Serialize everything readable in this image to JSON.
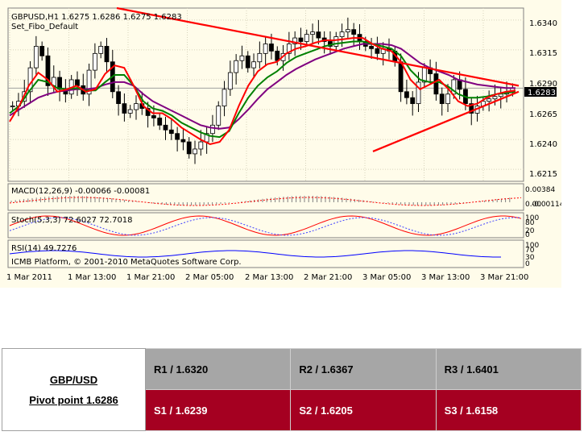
{
  "header": {
    "symbol_line": "GBPUSD,H1  1.6275 1.6286 1.6275 1.6283",
    "indicator_line": "Set_Fibo_Default"
  },
  "price_axis": {
    "ticks": [
      "1.6340",
      "1.6315",
      "1.6290",
      "1.6265",
      "1.6240",
      "1.6215"
    ],
    "current_price": "1.6283"
  },
  "time_axis": {
    "ticks": [
      "1 Mar 2011",
      "1 Mar 13:00",
      "1 Mar 21:00",
      "2 Mar 05:00",
      "2 Mar 13:00",
      "2 Mar 21:00",
      "3 Mar 05:00",
      "3 Mar 13:00",
      "3 Mar 21:00"
    ]
  },
  "panels": {
    "macd": {
      "label": "MACD(12,26,9) -0.00066 -0.00081",
      "ticks": [
        "0.00384",
        "0.00",
        "-0.00114"
      ]
    },
    "stoch": {
      "label": "Stoch(5,3,3) 72.6027 72.7018",
      "ticks": [
        "100",
        "80",
        "20",
        "0"
      ]
    },
    "rsi": {
      "label": "RSI(14) 49.7276",
      "ticks": [
        "100",
        "70",
        "30",
        "0"
      ]
    },
    "copyright": "ICMB Platform, © 2001-2010 MetaQuotes Software Corp."
  },
  "colors": {
    "chart_bg": "#fffcea",
    "candle_bull": "#ffffff",
    "candle_bear": "#000000",
    "ma_fast": "#ff0000",
    "ma_mid": "#008000",
    "ma_slow": "#800080",
    "trendline": "#ff0000",
    "r_levels_bg": "#a6a6a6",
    "s_levels_bg": "#a50021"
  },
  "pivot": {
    "pair": "GBP/USD",
    "pivot_point": "Pivot point 1.6286",
    "resistance": [
      "R1 / 1.6320",
      "R2 / 1.6367",
      "R3 / 1.6401"
    ],
    "support": [
      "S1 / 1.6239",
      "S2 / 1.6205",
      "S3 / 1.6158"
    ]
  },
  "chart_data": {
    "type": "candlestick",
    "title": "GBPUSD,H1",
    "ylim": [
      1.6205,
      1.635
    ],
    "x": [
      "1 Mar 2011",
      "1 Mar 13:00",
      "1 Mar 21:00",
      "2 Mar 05:00",
      "2 Mar 13:00",
      "2 Mar 21:00",
      "3 Mar 05:00",
      "3 Mar 13:00",
      "3 Mar 21:00"
    ],
    "close_path": [
      1.6268,
      1.6272,
      1.628,
      1.63,
      1.6318,
      1.631,
      1.6285,
      1.6292,
      1.6282,
      1.6278,
      1.629,
      1.6285,
      1.6278,
      1.6298,
      1.6312,
      1.6318,
      1.6305,
      1.628,
      1.627,
      1.6262,
      1.6265,
      1.627,
      1.6266,
      1.626,
      1.6258,
      1.6252,
      1.6248,
      1.6245,
      1.624,
      1.6238,
      1.6228,
      1.6232,
      1.6238,
      1.6245,
      1.6252,
      1.6268,
      1.6282,
      1.6296,
      1.6306,
      1.631,
      1.63,
      1.6305,
      1.6312,
      1.632,
      1.6314,
      1.6306,
      1.6312,
      1.632,
      1.6325,
      1.6322,
      1.6328,
      1.633,
      1.6325,
      1.6322,
      1.6318,
      1.6326,
      1.633,
      1.6332,
      1.6328,
      1.6322,
      1.6318,
      1.6316,
      1.6312,
      1.6316,
      1.6314,
      1.6305,
      1.628,
      1.6275,
      1.627,
      1.6288,
      1.63,
      1.6295,
      1.6278,
      1.627,
      1.6278,
      1.629,
      1.6282,
      1.627,
      1.6262,
      1.6268,
      1.6272,
      1.6274,
      1.6276,
      1.6278,
      1.628,
      1.6283
    ],
    "ma_fast": [
      1.6255,
      1.6268,
      1.6285,
      1.6296,
      1.629,
      1.628,
      1.6282,
      1.6285,
      1.628,
      1.6282,
      1.6295,
      1.6302,
      1.63,
      1.6285,
      1.6268,
      1.6262,
      1.6262,
      1.6257,
      1.625,
      1.6245,
      1.624,
      1.6236,
      1.6238,
      1.6248,
      1.6268,
      1.6285,
      1.6297,
      1.6303,
      1.6305,
      1.6312,
      1.6316,
      1.6318,
      1.6321,
      1.6323,
      1.6323,
      1.6324,
      1.6325,
      1.6325,
      1.632,
      1.6316,
      1.6314,
      1.6305,
      1.629,
      1.6282,
      1.6286,
      1.629,
      1.6282,
      1.6272,
      1.6268,
      1.627,
      1.6275,
      1.6278,
      1.628,
      1.6281
    ],
    "ma_mid": [
      1.6262,
      1.6268,
      1.628,
      1.629,
      1.6288,
      1.6283,
      1.6282,
      1.6283,
      1.6281,
      1.6281,
      1.6288,
      1.6294,
      1.6294,
      1.6285,
      1.6272,
      1.6266,
      1.6264,
      1.626,
      1.6254,
      1.625,
      1.6246,
      1.6243,
      1.6242,
      1.6247,
      1.6262,
      1.6275,
      1.6285,
      1.6292,
      1.6297,
      1.6304,
      1.6309,
      1.6312,
      1.6315,
      1.6318,
      1.632,
      1.6321,
      1.6322,
      1.6322,
      1.632,
      1.6318,
      1.6316,
      1.631,
      1.6298,
      1.629,
      1.6288,
      1.6288,
      1.6284,
      1.6278,
      1.6275,
      1.6275,
      1.6276,
      1.6278,
      1.6279,
      1.628
    ],
    "ma_slow": [
      1.626,
      1.6265,
      1.627,
      1.6275,
      1.6278,
      1.628,
      1.6281,
      1.6282,
      1.6282,
      1.6283,
      1.6286,
      1.6288,
      1.6288,
      1.6285,
      1.6278,
      1.6272,
      1.6268,
      1.6264,
      1.626,
      1.6256,
      1.6252,
      1.625,
      1.6249,
      1.625,
      1.6257,
      1.6265,
      1.6274,
      1.6282,
      1.6288,
      1.6294,
      1.6299,
      1.6303,
      1.6307,
      1.631,
      1.6313,
      1.6316,
      1.6318,
      1.632,
      1.632,
      1.632,
      1.6319,
      1.6316,
      1.631,
      1.6304,
      1.63,
      1.6297,
      1.6294,
      1.629,
      1.6288,
      1.6286,
      1.6285,
      1.6284,
      1.6283,
      1.6283
    ],
    "trendlines": [
      {
        "from": [
          "1 Mar 21:00",
          1.635
        ],
        "to": [
          "3 Mar 21:00",
          1.6285
        ]
      },
      {
        "from": [
          "3 Mar 05:00",
          1.623
        ],
        "to": [
          "3 Mar 21:00",
          1.628
        ]
      }
    ]
  }
}
